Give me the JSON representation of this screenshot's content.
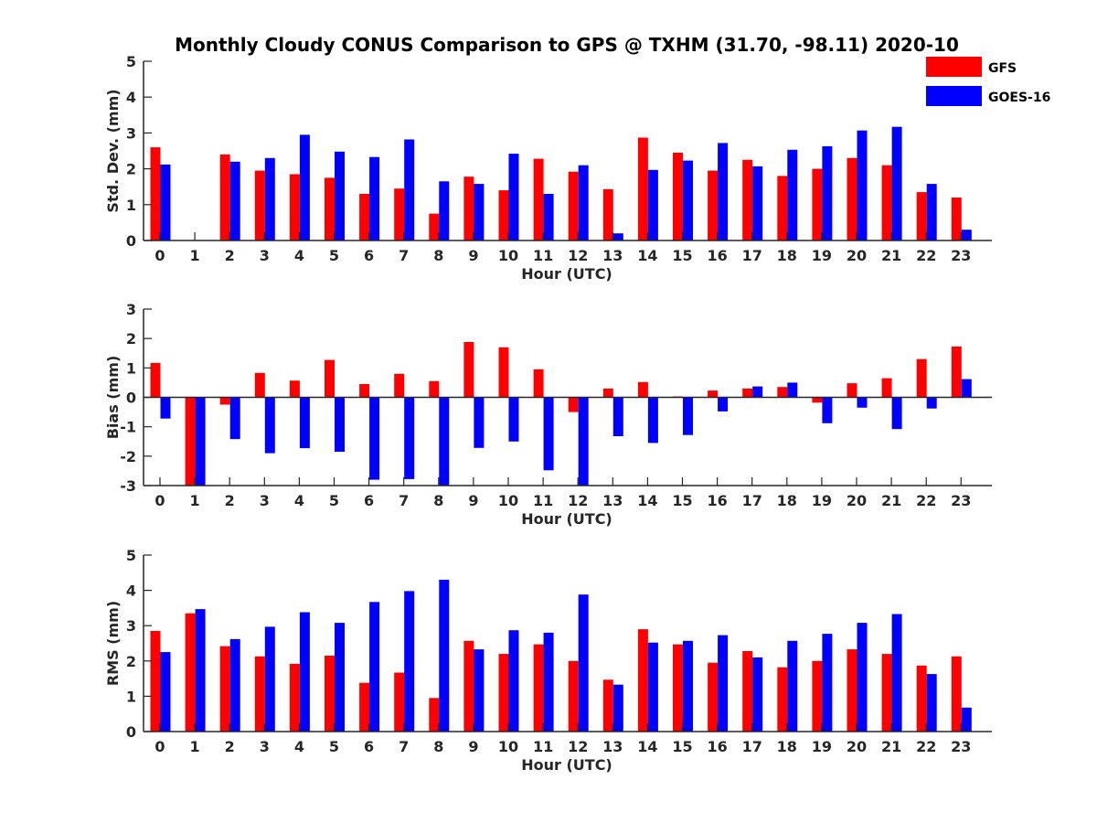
{
  "figure": {
    "title": "Monthly Cloudy CONUS Comparison to GPS @ TXHM (31.70, -98.11) 2020-10"
  },
  "legend": {
    "items": [
      {
        "label": "GFS",
        "color": "#ff0000"
      },
      {
        "label": "GOES-16",
        "color": "#0000ff"
      }
    ],
    "placement": "top-right"
  },
  "chart_data": [
    {
      "type": "bar",
      "xlabel": "Hour (UTC)",
      "ylabel": "Std. Dev. (mm)",
      "ylim": [
        0,
        5
      ],
      "yticks": [
        "0",
        "1",
        "2",
        "3",
        "4",
        "5"
      ],
      "categories": [
        "0",
        "1",
        "2",
        "3",
        "4",
        "5",
        "6",
        "7",
        "8",
        "9",
        "10",
        "11",
        "12",
        "13",
        "14",
        "15",
        "16",
        "17",
        "18",
        "19",
        "20",
        "21",
        "22",
        "23"
      ],
      "series": [
        {
          "name": "GFS",
          "color": "#ff0000",
          "values": [
            2.6,
            0.0,
            2.4,
            1.95,
            1.85,
            1.75,
            1.3,
            1.45,
            0.75,
            1.78,
            1.4,
            2.28,
            1.92,
            1.43,
            2.87,
            2.45,
            1.95,
            2.25,
            1.8,
            2.0,
            2.3,
            2.1,
            1.35,
            1.2
          ]
        },
        {
          "name": "GOES-16",
          "color": "#0000ff",
          "values": [
            2.12,
            0.0,
            2.2,
            2.3,
            2.95,
            2.48,
            2.33,
            2.82,
            1.65,
            1.58,
            2.42,
            1.3,
            2.1,
            0.2,
            1.97,
            2.23,
            2.72,
            2.07,
            2.53,
            2.63,
            3.07,
            3.17,
            1.58,
            0.3
          ]
        }
      ]
    },
    {
      "type": "bar",
      "xlabel": "Hour (UTC)",
      "ylabel": "Bias (mm)",
      "ylim": [
        -3,
        3
      ],
      "yticks": [
        "-3",
        "-2",
        "-1",
        "0",
        "1",
        "2",
        "3"
      ],
      "categories": [
        "0",
        "1",
        "2",
        "3",
        "4",
        "5",
        "6",
        "7",
        "8",
        "9",
        "10",
        "11",
        "12",
        "13",
        "14",
        "15",
        "16",
        "17",
        "18",
        "19",
        "20",
        "21",
        "22",
        "23"
      ],
      "series": [
        {
          "name": "GFS",
          "color": "#ff0000",
          "values": [
            1.17,
            -3.0,
            -0.25,
            0.83,
            0.57,
            1.27,
            0.45,
            0.8,
            0.55,
            1.88,
            1.7,
            0.95,
            -0.5,
            0.3,
            0.52,
            0.03,
            0.23,
            0.3,
            0.35,
            -0.18,
            0.48,
            0.65,
            1.3,
            1.73
          ]
        },
        {
          "name": "GOES-16",
          "color": "#0000ff",
          "values": [
            -0.72,
            -3.0,
            -1.42,
            -1.9,
            -1.73,
            -1.85,
            -2.8,
            -2.78,
            -3.0,
            -1.72,
            -1.5,
            -2.48,
            -3.0,
            -1.32,
            -1.55,
            -1.28,
            -0.48,
            0.37,
            0.5,
            -0.88,
            -0.35,
            -1.08,
            -0.38,
            0.62
          ]
        }
      ]
    },
    {
      "type": "bar",
      "xlabel": "Hour (UTC)",
      "ylabel": "RMS (mm)",
      "ylim": [
        0,
        5
      ],
      "yticks": [
        "0",
        "1",
        "2",
        "3",
        "4",
        "5"
      ],
      "categories": [
        "0",
        "1",
        "2",
        "3",
        "4",
        "5",
        "6",
        "7",
        "8",
        "9",
        "10",
        "11",
        "12",
        "13",
        "14",
        "15",
        "16",
        "17",
        "18",
        "19",
        "20",
        "21",
        "22",
        "23"
      ],
      "series": [
        {
          "name": "GFS",
          "color": "#ff0000",
          "values": [
            2.85,
            3.35,
            2.42,
            2.13,
            1.92,
            2.15,
            1.38,
            1.67,
            0.95,
            2.57,
            2.2,
            2.47,
            2.0,
            1.47,
            2.9,
            2.47,
            1.95,
            2.28,
            1.82,
            2.0,
            2.33,
            2.2,
            1.87,
            2.13
          ]
        },
        {
          "name": "GOES-16",
          "color": "#0000ff",
          "values": [
            2.25,
            3.47,
            2.62,
            2.97,
            3.38,
            3.08,
            3.67,
            3.98,
            4.3,
            2.33,
            2.87,
            2.8,
            3.88,
            1.33,
            2.52,
            2.57,
            2.73,
            2.1,
            2.57,
            2.77,
            3.08,
            3.33,
            1.63,
            0.68
          ]
        }
      ]
    }
  ]
}
